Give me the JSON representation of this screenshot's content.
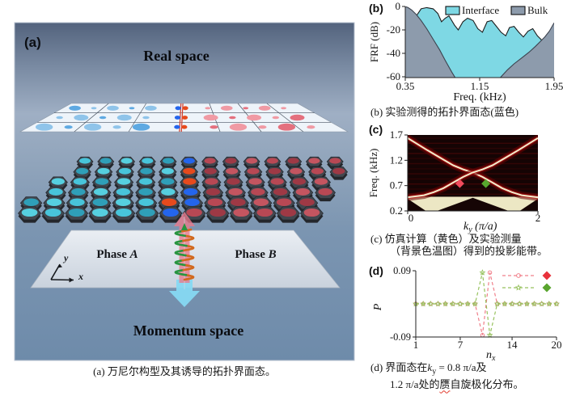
{
  "panel_a": {
    "label": "(a)",
    "real_space": "Real space",
    "momentum_space": "Momentum space",
    "phase_a_word": "Phase ",
    "phase_a_letter": "A",
    "phase_b_word": "Phase ",
    "phase_b_letter": "B",
    "axis_x": "x",
    "axis_y": "y",
    "caption": "(a) 万尼尔构型及其诱导的拓扑界面态。",
    "colors": {
      "lattice_cyan": "#48c4da",
      "lattice_red": "#b84854",
      "interface_blue": "#2465ec",
      "interface_orange": "#e64a1d",
      "up_arrow_pink": "#e87a8c",
      "down_arrow_cyan": "#86d9f2",
      "coil_green": "#2a9440",
      "coil_orange": "#d2691e"
    }
  },
  "panel_b": {
    "label": "(b)",
    "caption": "(b) 实验测得的拓扑界面态(蓝色)"
  },
  "panel_c": {
    "label": "(c)",
    "caption_line1": "(c) 仿真计算（黄色）及实验测量",
    "caption_line2": "（背景色温图）得到的投影能带。"
  },
  "panel_d": {
    "label": "(d)",
    "caption": {
      "line1_pre": "(d) 界面态在",
      "k": "k",
      "k_sub": "y",
      "line1_post": " = 0.8 π/a及",
      "line2_pre": "1.2 π/a处的",
      "line2_word": "赝",
      "line2_post": "自旋极化分布。"
    }
  },
  "chart_data": [
    {
      "id": "b",
      "type": "area",
      "xlabel": "Freq. (kHz)",
      "ylabel": "FRF (dB)",
      "xlim": [
        0.35,
        1.95
      ],
      "ylim": [
        -60,
        0
      ],
      "xticks": [
        0.35,
        1.15,
        1.95
      ],
      "yticks": [
        0,
        -20,
        -40,
        -60
      ],
      "legend_position": "top-right-inside",
      "series": [
        {
          "name": "Interface",
          "color": "#7ed8e4",
          "edge": "#1c1c1c",
          "points": [
            [
              0.4,
              -62
            ],
            [
              0.44,
              -30
            ],
            [
              0.47,
              -8
            ],
            [
              0.52,
              -2
            ],
            [
              0.58,
              -1
            ],
            [
              0.65,
              -2
            ],
            [
              0.7,
              -6
            ],
            [
              0.74,
              -13
            ],
            [
              0.78,
              -10
            ],
            [
              0.82,
              -8
            ],
            [
              0.88,
              -16
            ],
            [
              0.92,
              -20
            ],
            [
              0.97,
              -13
            ],
            [
              1.02,
              -10
            ],
            [
              1.08,
              -12
            ],
            [
              1.13,
              -19
            ],
            [
              1.18,
              -22
            ],
            [
              1.23,
              -13
            ],
            [
              1.28,
              -12
            ],
            [
              1.33,
              -17
            ],
            [
              1.38,
              -22
            ],
            [
              1.43,
              -25
            ],
            [
              1.47,
              -18
            ],
            [
              1.52,
              -17
            ],
            [
              1.57,
              -22
            ],
            [
              1.62,
              -26
            ],
            [
              1.67,
              -21
            ],
            [
              1.72,
              -19
            ],
            [
              1.77,
              -25
            ],
            [
              1.82,
              -29
            ],
            [
              1.86,
              -27
            ],
            [
              1.9,
              -38
            ],
            [
              1.93,
              -50
            ],
            [
              1.95,
              -62
            ]
          ]
        },
        {
          "name": "Bulk",
          "color": "#8d9bac",
          "edge": "#3c424e",
          "points": [
            [
              0.35,
              0
            ],
            [
              0.38,
              -1
            ],
            [
              0.42,
              -3
            ],
            [
              0.47,
              -7
            ],
            [
              0.52,
              -12
            ],
            [
              0.58,
              -19
            ],
            [
              0.65,
              -28
            ],
            [
              0.72,
              -37
            ],
            [
              0.78,
              -46
            ],
            [
              0.85,
              -56
            ],
            [
              0.92,
              -65
            ],
            [
              1.0,
              -72
            ],
            [
              1.15,
              -75
            ],
            [
              1.3,
              -68
            ],
            [
              1.38,
              -60
            ],
            [
              1.45,
              -54
            ],
            [
              1.52,
              -49
            ],
            [
              1.6,
              -44
            ],
            [
              1.68,
              -39
            ],
            [
              1.75,
              -34
            ],
            [
              1.8,
              -30
            ],
            [
              1.85,
              -26
            ],
            [
              1.9,
              -21
            ],
            [
              1.95,
              -14
            ]
          ]
        }
      ]
    },
    {
      "id": "c",
      "type": "heatmap-bands",
      "xlabel": {
        "pre": "k",
        "sub": "y",
        "post": " (π/a)"
      },
      "ylabel": "Freq. (kHz)",
      "xlim": [
        0,
        2
      ],
      "ylim": [
        0.2,
        1.7
      ],
      "xticks": [
        0,
        2
      ],
      "yticks": [
        0.2,
        0.7,
        1.2,
        1.7
      ],
      "bulk_band_top_kHz": 0.48,
      "colors": {
        "background": "#150404",
        "band": "#f2eecd",
        "glow": "#c51212",
        "bulk_strip": "#ece7c4",
        "bulk_dark": "#160505"
      },
      "bands": [
        {
          "name": "edge-band-descending",
          "points": [
            [
              0,
              1.64
            ],
            [
              0.15,
              1.52
            ],
            [
              0.3,
              1.4
            ],
            [
              0.5,
              1.25
            ],
            [
              0.7,
              1.1
            ],
            [
              0.85,
              1.02
            ],
            [
              1,
              0.96
            ],
            [
              1.15,
              0.87
            ],
            [
              1.3,
              0.76
            ],
            [
              1.45,
              0.65
            ],
            [
              1.6,
              0.57
            ],
            [
              1.75,
              0.51
            ],
            [
              2,
              0.47
            ]
          ]
        },
        {
          "name": "edge-band-ascending",
          "points": [
            [
              0,
              0.47
            ],
            [
              0.25,
              0.51
            ],
            [
              0.4,
              0.57
            ],
            [
              0.55,
              0.65
            ],
            [
              0.7,
              0.76
            ],
            [
              0.85,
              0.87
            ],
            [
              1,
              0.96
            ],
            [
              1.15,
              1.02
            ],
            [
              1.3,
              1.1
            ],
            [
              1.5,
              1.25
            ],
            [
              1.7,
              1.4
            ],
            [
              1.85,
              1.52
            ],
            [
              2,
              1.64
            ]
          ]
        }
      ],
      "markers": [
        {
          "x": 0.8,
          "y": 0.74,
          "shape": "diamond",
          "color": "#f04b5c"
        },
        {
          "x": 1.2,
          "y": 0.74,
          "shape": "diamond",
          "color": "#57a82e"
        }
      ]
    },
    {
      "id": "d",
      "type": "line",
      "xlabel": {
        "pre": "n",
        "sub": "x",
        "post": ""
      },
      "ylabel": "P",
      "xlim": [
        1,
        20
      ],
      "ylim": [
        -0.09,
        0.09
      ],
      "xticks": [
        1,
        7,
        14,
        20
      ],
      "yticks": [
        0.09,
        -0.09
      ],
      "x": [
        1,
        2,
        3,
        4,
        5,
        6,
        7,
        8,
        9,
        10,
        11,
        12,
        13,
        14,
        15,
        16,
        17,
        18,
        19,
        20
      ],
      "series": [
        {
          "name": "ky = 0.8 π/a",
          "color": "#f07f8a",
          "marker": "circle",
          "diamond_color": "#e8323c",
          "values": [
            0,
            0,
            0,
            0,
            0,
            0,
            0,
            0,
            0,
            -0.085,
            0.085,
            0,
            0,
            0,
            0,
            0,
            0,
            0,
            0,
            0
          ]
        },
        {
          "name": "ky = 1.2 π/a",
          "color": "#97c25e",
          "marker": "star",
          "diamond_color": "#5aa52e",
          "values": [
            0,
            0,
            0,
            0,
            0,
            0,
            0,
            0,
            0,
            0.085,
            -0.085,
            0,
            0,
            0,
            0,
            0,
            0,
            0,
            0,
            0
          ]
        }
      ]
    }
  ]
}
